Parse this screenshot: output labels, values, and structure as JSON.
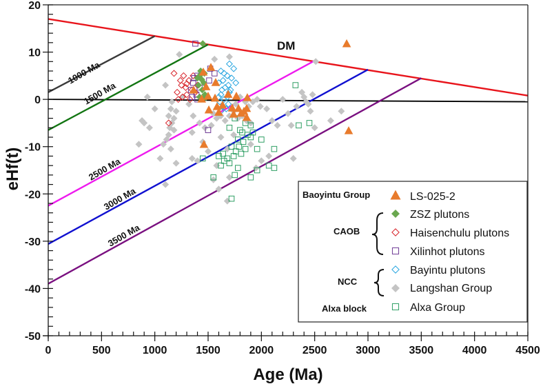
{
  "chart_data": {
    "type": "scatter",
    "title": "",
    "xlabel": "Age (Ma)",
    "ylabel": "eHf(t)",
    "xlim": [
      0,
      4500
    ],
    "ylim": [
      -50,
      20
    ],
    "xticks": [
      0,
      500,
      1000,
      1500,
      2000,
      2500,
      3000,
      3500,
      4000,
      4500
    ],
    "yticks": [
      20,
      10,
      0,
      -10,
      -20,
      -30,
      -40,
      -50
    ],
    "grid": false,
    "legend_position": "bottom-right",
    "reference_lines": [
      {
        "name": "DM",
        "label": "DM",
        "color": "#e8141b",
        "points": [
          [
            0,
            17.0
          ],
          [
            4500,
            0.8
          ]
        ]
      },
      {
        "name": "CHUR",
        "label": "",
        "color": "#000000",
        "points": [
          [
            0,
            0.0
          ],
          [
            4500,
            -0.5
          ]
        ]
      },
      {
        "name": "1000 Ma",
        "label": "1000 Ma",
        "color": "#3a3a3a",
        "points": [
          [
            0,
            1.5
          ],
          [
            1000,
            13.4
          ]
        ]
      },
      {
        "name": "1500 Ma",
        "label": "1500 Ma",
        "color": "#127512",
        "points": [
          [
            0,
            -6.5
          ],
          [
            1500,
            11.6
          ]
        ]
      },
      {
        "name": "2500 Ma",
        "label": "2500 Ma",
        "color": "#ee1aee",
        "points": [
          [
            0,
            -22.5
          ],
          [
            2500,
            8.2
          ]
        ]
      },
      {
        "name": "3000 Ma",
        "label": "3000 Ma",
        "color": "#1010d0",
        "points": [
          [
            0,
            -30.6
          ],
          [
            3000,
            6.3
          ]
        ]
      },
      {
        "name": "3500 Ma",
        "label": "3500 Ma",
        "color": "#7a1080",
        "points": [
          [
            0,
            -39.0
          ],
          [
            3500,
            4.5
          ]
        ]
      }
    ],
    "series": [
      {
        "name": "LS-025-2",
        "group": "Baoyintu Group",
        "marker": "triangle-filled",
        "color": "#e87b2c",
        "points": [
          [
            1461,
            -9.6
          ],
          [
            1526,
            6.7
          ],
          [
            1571,
            3.5
          ],
          [
            1565,
            0.2
          ],
          [
            1500,
            0.6
          ],
          [
            1688,
            1.0
          ],
          [
            1765,
            0.6
          ],
          [
            1726,
            -1.9
          ],
          [
            1584,
            -1.6
          ],
          [
            1507,
            -2.3
          ],
          [
            1810,
            -3.0
          ],
          [
            1836,
            -2.6
          ],
          [
            1862,
            -2.0
          ],
          [
            1785,
            -2.0
          ],
          [
            1868,
            0.3
          ],
          [
            1455,
            5.7
          ],
          [
            1364,
            1.9
          ],
          [
            1481,
            2.6
          ],
          [
            1739,
            -3.2
          ],
          [
            1636,
            -1.3
          ],
          [
            2800,
            11.7
          ],
          [
            2819,
            -6.7
          ],
          [
            1862,
            -3.9
          ],
          [
            1440,
            0.0
          ],
          [
            1600,
            -2.8
          ]
        ]
      },
      {
        "name": "ZSZ plutons",
        "group": "CAOB",
        "marker": "diamond-filled",
        "color": "#6aa84f",
        "points": [
          [
            1450,
            11.8
          ],
          [
            1430,
            6.0
          ],
          [
            1420,
            5.0
          ],
          [
            1440,
            4.2
          ],
          [
            1460,
            3.5
          ],
          [
            1410,
            3.0
          ],
          [
            1445,
            2.0
          ],
          [
            1470,
            1.0
          ],
          [
            1420,
            0.5
          ],
          [
            1455,
            0.2
          ],
          [
            1480,
            0.4
          ],
          [
            1400,
            4.5
          ],
          [
            1465,
            5.5
          ]
        ]
      },
      {
        "name": "Haisenchulu plutons",
        "group": "CAOB",
        "marker": "diamond-open",
        "color": "#d8232a",
        "points": [
          [
            1180,
            5.5
          ],
          [
            1270,
            5.0
          ],
          [
            1300,
            3.3
          ],
          [
            1240,
            4.0
          ],
          [
            1320,
            4.0
          ],
          [
            1210,
            1.5
          ],
          [
            1350,
            2.0
          ],
          [
            1300,
            1.0
          ],
          [
            1260,
            0.5
          ],
          [
            1220,
            0.0
          ],
          [
            1380,
            1.5
          ],
          [
            1400,
            3.0
          ],
          [
            1330,
            0.0
          ],
          [
            1290,
            2.5
          ],
          [
            1130,
            -5.0
          ],
          [
            1360,
            5.0
          ],
          [
            1250,
            3.0
          ]
        ]
      },
      {
        "name": "Xilinhot plutons",
        "group": "CAOB",
        "marker": "square-open",
        "color": "#6f3a96",
        "points": [
          [
            1380,
            11.8
          ],
          [
            1520,
            6.5
          ],
          [
            1560,
            5.5
          ],
          [
            1400,
            5.0
          ],
          [
            1360,
            3.5
          ],
          [
            1340,
            2.0
          ],
          [
            1390,
            1.0
          ],
          [
            1420,
            2.5
          ],
          [
            1350,
            0.5
          ],
          [
            1370,
            4.5
          ],
          [
            1510,
            4.0
          ],
          [
            1500,
            -6.5
          ],
          [
            1400,
            0.0
          ]
        ]
      },
      {
        "name": "Bayintu plutons",
        "group": "NCC",
        "marker": "diamond-open",
        "color": "#29a6e0",
        "points": [
          [
            1700,
            7.5
          ],
          [
            1620,
            6.0
          ],
          [
            1650,
            5.5
          ],
          [
            1680,
            5.0
          ],
          [
            1720,
            4.5
          ],
          [
            1640,
            4.0
          ],
          [
            1600,
            3.5
          ],
          [
            1690,
            3.0
          ],
          [
            1660,
            2.5
          ],
          [
            1630,
            2.0
          ],
          [
            1700,
            1.5
          ],
          [
            1620,
            1.0
          ],
          [
            1680,
            0.5
          ],
          [
            1650,
            0.0
          ],
          [
            1610,
            -0.5
          ],
          [
            1690,
            -1.0
          ],
          [
            1640,
            -1.5
          ],
          [
            1620,
            -2.5
          ],
          [
            1670,
            -2.0
          ],
          [
            1740,
            6.5
          ],
          [
            1760,
            3.5
          ],
          [
            1600,
            0.5
          ],
          [
            1710,
            2.0
          ]
        ]
      },
      {
        "name": "Langshan Group",
        "group": "NCC",
        "marker": "diamond-filled",
        "color": "#c4c4c4",
        "points": [
          [
            1230,
            9.5
          ],
          [
            1560,
            8.5
          ],
          [
            1700,
            9.0
          ],
          [
            1100,
            3.0
          ],
          [
            1160,
            -0.5
          ],
          [
            1150,
            -2.0
          ],
          [
            1200,
            -2.5
          ],
          [
            1130,
            -3.5
          ],
          [
            1180,
            -4.0
          ],
          [
            1160,
            -5.0
          ],
          [
            1140,
            -6.0
          ],
          [
            1180,
            -6.5
          ],
          [
            1130,
            -7.5
          ],
          [
            1110,
            -8.5
          ],
          [
            1080,
            -9.5
          ],
          [
            930,
            0.5
          ],
          [
            1000,
            -2.0
          ],
          [
            880,
            -4.5
          ],
          [
            900,
            -5.0
          ],
          [
            950,
            -6.0
          ],
          [
            850,
            -9.5
          ],
          [
            1260,
            0.5
          ],
          [
            1320,
            -1.0
          ],
          [
            1360,
            -3.5
          ],
          [
            1420,
            -5.0
          ],
          [
            1470,
            -6.0
          ],
          [
            1530,
            -5.5
          ],
          [
            1580,
            -4.0
          ],
          [
            1550,
            -3.0
          ],
          [
            1620,
            -3.5
          ],
          [
            1660,
            -4.5
          ],
          [
            1700,
            -3.5
          ],
          [
            1740,
            -2.5
          ],
          [
            1780,
            -4.0
          ],
          [
            1820,
            -3.5
          ],
          [
            1860,
            -4.5
          ],
          [
            1900,
            -5.0
          ],
          [
            1760,
            -1.0
          ],
          [
            1800,
            0.5
          ],
          [
            1850,
            -0.5
          ],
          [
            1880,
            -1.5
          ],
          [
            1920,
            -0.5
          ],
          [
            1960,
            0.0
          ],
          [
            1990,
            -1.5
          ],
          [
            2050,
            -2.0
          ],
          [
            2100,
            -4.5
          ],
          [
            2150,
            -5.5
          ],
          [
            2200,
            0.0
          ],
          [
            2250,
            -3.0
          ],
          [
            2280,
            -5.5
          ],
          [
            2330,
            -1.5
          ],
          [
            2380,
            1.5
          ],
          [
            2400,
            0.5
          ],
          [
            2420,
            -0.5
          ],
          [
            2440,
            -1.0
          ],
          [
            2460,
            -2.5
          ],
          [
            2480,
            1.0
          ],
          [
            2500,
            -6.0
          ],
          [
            2510,
            8.0
          ],
          [
            2650,
            -4.5
          ],
          [
            2750,
            -2.5
          ],
          [
            2300,
            -12.5
          ],
          [
            2070,
            -12.0
          ],
          [
            2000,
            -13.0
          ],
          [
            1950,
            -14.5
          ],
          [
            1700,
            -16.5
          ],
          [
            1580,
            -14.0
          ],
          [
            1680,
            -10.5
          ],
          [
            1740,
            -7.5
          ],
          [
            1620,
            -8.0
          ],
          [
            1500,
            -11.0
          ],
          [
            1400,
            -13.0
          ],
          [
            1450,
            -9.0
          ],
          [
            1350,
            -12.5
          ],
          [
            1550,
            -17.0
          ],
          [
            1600,
            -19.0
          ],
          [
            1050,
            -12.5
          ],
          [
            1150,
            -10.5
          ],
          [
            1350,
            -7.0
          ],
          [
            1200,
            -13.5
          ],
          [
            1100,
            -18.0
          ],
          [
            1680,
            -21.5
          ],
          [
            1900,
            -9.5
          ]
        ]
      },
      {
        "name": "Alxa Group",
        "group": "Alxa block",
        "marker": "square-open",
        "color": "#2e9e63",
        "points": [
          [
            1750,
            -4.0
          ],
          [
            1850,
            -5.0
          ],
          [
            1900,
            -5.5
          ],
          [
            1700,
            -6.0
          ],
          [
            1800,
            -6.5
          ],
          [
            1920,
            -7.0
          ],
          [
            1870,
            -7.5
          ],
          [
            1780,
            -8.5
          ],
          [
            1830,
            -9.0
          ],
          [
            1900,
            -8.0
          ],
          [
            1960,
            -10.5
          ],
          [
            1720,
            -10.0
          ],
          [
            1760,
            -11.0
          ],
          [
            1810,
            -11.5
          ],
          [
            1740,
            -12.0
          ],
          [
            1680,
            -12.5
          ],
          [
            1650,
            -13.0
          ],
          [
            1700,
            -13.5
          ],
          [
            1620,
            -14.0
          ],
          [
            1780,
            -14.5
          ],
          [
            1750,
            -16.0
          ],
          [
            1900,
            -16.5
          ],
          [
            1960,
            -15.0
          ],
          [
            1550,
            -16.5
          ],
          [
            1600,
            -12.0
          ],
          [
            1640,
            -11.5
          ],
          [
            1790,
            -10.0
          ],
          [
            1850,
            -10.5
          ],
          [
            2070,
            -14.0
          ],
          [
            2120,
            -14.5
          ],
          [
            2000,
            -8.5
          ],
          [
            2320,
            3.0
          ],
          [
            2350,
            -5.5
          ],
          [
            2450,
            -5.0
          ],
          [
            2120,
            -10.5
          ],
          [
            1720,
            -21.0
          ],
          [
            1450,
            -12.5
          ],
          [
            1820,
            -7.0
          ]
        ]
      }
    ],
    "legend": [
      {
        "group": "Baoyintu Group",
        "entries": [
          "LS-025-2"
        ]
      },
      {
        "group": "CAOB",
        "entries": [
          "ZSZ plutons",
          "Haisenchulu plutons",
          "Xilinhot plutons"
        ]
      },
      {
        "group": "NCC",
        "entries": [
          "Bayintu plutons",
          "Langshan Group"
        ]
      },
      {
        "group": "Alxa block",
        "entries": [
          "Alxa Group"
        ]
      }
    ]
  },
  "labels": {
    "xlabel": "Age (Ma)",
    "ylabel": "eHf(t)",
    "dm": "DM",
    "line_1000": "1000 Ma",
    "line_1500": "1500 Ma",
    "line_2500": "2500 Ma",
    "line_3000": "3000 Ma",
    "line_3500": "3500 Ma",
    "legend_group_baoyintu": "Baoyintu Group",
    "legend_group_caob": "CAOB",
    "legend_group_ncc": "NCC",
    "legend_group_alxa": "Alxa block",
    "legend_ls": "LS-025-2",
    "legend_zsz": "ZSZ plutons",
    "legend_haisenchulu": "Haisenchulu plutons",
    "legend_xilinhot": "Xilinhot plutons",
    "legend_bayintu": "Bayintu plutons",
    "legend_langshan": "Langshan Group",
    "legend_alxa": "Alxa Group"
  }
}
